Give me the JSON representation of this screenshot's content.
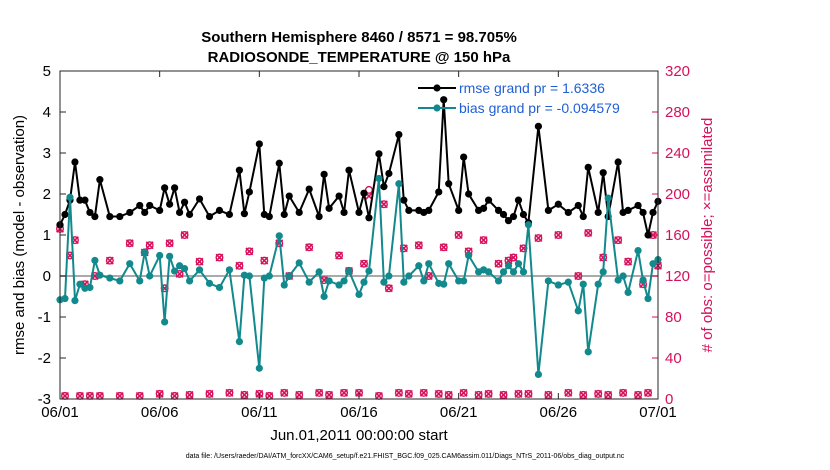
{
  "chart_data": {
    "type": "line",
    "title": "Southern Hemisphere 8460 / 8571 = 98.705%",
    "subtitle": "RADIOSONDE_TEMPERATURE @ 150 hPa",
    "xlabel": "Jun.01,2011 00:00:00 start",
    "ylabel": "rmse and bias (model - observation)",
    "ylabel_right": "# of obs: o=possible; ×=assimilated",
    "footnote": "data file: /Users/raeder/DAI/ATM_forcXX/CAM6_setup/f.e21.FHIST_BGC.f09_025.CAM6assim.011/Diags_NTrS_2011-06/obs_diag_output.nc",
    "xlim": [
      0,
      30
    ],
    "ylim": [
      -3,
      5
    ],
    "ylim_right": [
      0,
      320
    ],
    "x_ticks": [
      "06/01",
      "06/06",
      "06/11",
      "06/16",
      "06/21",
      "06/26",
      "07/01"
    ],
    "x_tick_values": [
      0,
      5,
      10,
      15,
      20,
      25,
      30
    ],
    "y_ticks": [
      "-3",
      "-2",
      "-1",
      "0",
      "1",
      "2",
      "3",
      "4",
      "5"
    ],
    "y_tick_values": [
      -3,
      -2,
      -1,
      0,
      1,
      2,
      3,
      4,
      5
    ],
    "y_ticks_right": [
      "0",
      "40",
      "80",
      "120",
      "160",
      "200",
      "240",
      "280",
      "320"
    ],
    "y_tick_values_right": [
      0,
      40,
      80,
      120,
      160,
      200,
      240,
      280,
      320
    ],
    "grid": false,
    "legend_position": "top-right",
    "colors": {
      "rmse": "#000000",
      "bias": "#12898c",
      "obs": "#d6115b",
      "zero_line": "#aaaaaa",
      "legend_text": "#1f5fd6"
    },
    "series": [
      {
        "name": "rmse grand pr = 1.6336",
        "axis": "left",
        "x": [
          0.0,
          0.25,
          0.5,
          0.75,
          1.0,
          1.25,
          1.5,
          1.75,
          2.0,
          2.5,
          3.0,
          3.5,
          4.0,
          4.25,
          4.5,
          5.0,
          5.25,
          5.5,
          5.75,
          6.0,
          6.25,
          6.5,
          7.0,
          7.5,
          8.0,
          8.5,
          9.0,
          9.25,
          9.5,
          10.0,
          10.25,
          10.5,
          11.0,
          11.25,
          11.5,
          12.0,
          12.5,
          13.0,
          13.25,
          13.5,
          14.0,
          14.25,
          14.5,
          15.0,
          15.25,
          15.5,
          16.0,
          16.25,
          16.5,
          17.0,
          17.25,
          17.5,
          18.0,
          18.25,
          18.5,
          19.0,
          19.25,
          19.5,
          20.0,
          20.25,
          20.5,
          21.0,
          21.25,
          21.5,
          22.0,
          22.25,
          22.5,
          22.75,
          23.0,
          23.25,
          23.5,
          24.0,
          24.5,
          25.0,
          25.5,
          26.0,
          26.25,
          26.5,
          27.0,
          27.25,
          27.5,
          28.0,
          28.25,
          28.5,
          29.0,
          29.25,
          29.5,
          29.75,
          30.0
        ],
        "values": [
          1.25,
          1.5,
          1.85,
          2.78,
          1.85,
          1.85,
          1.55,
          1.45,
          2.35,
          1.45,
          1.45,
          1.55,
          1.72,
          1.55,
          1.72,
          1.6,
          2.15,
          1.75,
          2.15,
          1.55,
          1.8,
          1.5,
          1.88,
          1.45,
          1.6,
          1.5,
          2.58,
          1.52,
          2.05,
          3.22,
          1.5,
          1.45,
          2.75,
          1.5,
          1.95,
          1.55,
          2.12,
          1.45,
          2.48,
          1.65,
          1.95,
          1.55,
          2.58,
          1.55,
          2.02,
          1.42,
          2.98,
          2.18,
          2.5,
          3.45,
          1.85,
          1.6,
          1.6,
          1.55,
          1.6,
          2.05,
          4.3,
          2.25,
          1.6,
          2.9,
          2.0,
          1.6,
          1.65,
          1.85,
          1.6,
          1.5,
          1.35,
          1.45,
          1.85,
          1.5,
          1.3,
          3.65,
          1.6,
          1.75,
          1.55,
          1.72,
          1.45,
          2.65,
          1.55,
          2.52,
          1.45,
          2.78,
          1.55,
          1.6,
          1.72,
          1.55,
          1.0,
          1.55,
          1.82
        ]
      },
      {
        "name": "bias grand pr = -0.094579",
        "axis": "left",
        "x": [
          0.0,
          0.25,
          0.5,
          0.75,
          1.0,
          1.25,
          1.5,
          1.75,
          2.0,
          2.5,
          3.0,
          3.5,
          4.0,
          4.25,
          4.5,
          5.0,
          5.25,
          5.5,
          5.75,
          6.0,
          6.25,
          6.5,
          7.0,
          7.5,
          8.0,
          8.5,
          9.0,
          9.25,
          9.5,
          10.0,
          10.25,
          10.5,
          11.0,
          11.25,
          11.5,
          12.0,
          12.5,
          13.0,
          13.25,
          13.5,
          14.0,
          14.25,
          14.5,
          15.0,
          15.25,
          15.5,
          16.0,
          16.25,
          16.5,
          17.0,
          17.25,
          17.5,
          18.0,
          18.25,
          18.5,
          19.0,
          19.25,
          19.5,
          20.0,
          20.25,
          20.5,
          21.0,
          21.25,
          21.5,
          22.0,
          22.25,
          22.5,
          22.75,
          23.0,
          23.25,
          23.5,
          24.0,
          24.5,
          25.0,
          25.5,
          26.0,
          26.25,
          26.5,
          27.0,
          27.25,
          27.5,
          28.0,
          28.25,
          28.5,
          29.0,
          29.25,
          29.5,
          29.75,
          30.0
        ],
        "values": [
          -0.58,
          -0.55,
          1.92,
          -0.6,
          -0.2,
          -0.3,
          -0.28,
          0.38,
          0.02,
          -0.05,
          -0.12,
          0.3,
          -0.12,
          0.58,
          0.0,
          0.5,
          -1.12,
          0.48,
          0.12,
          0.25,
          0.18,
          -0.12,
          0.15,
          -0.18,
          -0.28,
          0.15,
          -1.6,
          0.02,
          0.0,
          -2.25,
          -0.05,
          0.0,
          0.98,
          -0.22,
          0.0,
          0.32,
          -0.15,
          0.1,
          -0.5,
          -0.12,
          -0.22,
          -0.12,
          0.12,
          -0.45,
          -0.15,
          0.12,
          2.38,
          -0.15,
          0.0,
          2.25,
          -0.15,
          0.0,
          0.25,
          -0.12,
          0.3,
          -0.18,
          -0.2,
          0.3,
          -0.12,
          -0.12,
          0.5,
          0.1,
          0.15,
          0.1,
          -0.12,
          0.1,
          0.25,
          0.1,
          0.3,
          0.1,
          1.25,
          -2.4,
          -0.12,
          -0.22,
          -0.15,
          -0.85,
          -0.2,
          -1.85,
          -0.2,
          0.1,
          1.9,
          -0.1,
          0.0,
          -0.4,
          0.62,
          -0.1,
          -0.55,
          0.3,
          0.4
        ]
      },
      {
        "name": "# of obs possible",
        "axis": "right",
        "marker": "o",
        "x": [
          0.0,
          0.25,
          0.5,
          0.75,
          1.0,
          1.25,
          1.5,
          1.75,
          2.0,
          2.5,
          3.0,
          3.5,
          4.0,
          4.25,
          4.5,
          5.0,
          5.25,
          5.5,
          5.75,
          6.0,
          6.25,
          6.5,
          7.0,
          7.5,
          8.0,
          8.5,
          9.0,
          9.25,
          9.5,
          10.0,
          10.25,
          10.5,
          11.0,
          11.25,
          11.5,
          12.0,
          12.5,
          13.0,
          13.25,
          13.5,
          14.0,
          14.25,
          14.5,
          15.0,
          15.25,
          15.5,
          16.0,
          16.25,
          16.5,
          17.0,
          17.25,
          17.5,
          18.0,
          18.25,
          18.5,
          19.0,
          19.25,
          19.5,
          20.0,
          20.25,
          20.5,
          21.0,
          21.25,
          21.5,
          22.0,
          22.25,
          22.5,
          22.75,
          23.0,
          23.25,
          23.5,
          24.0,
          24.5,
          25.0,
          25.5,
          26.0,
          26.25,
          26.5,
          27.0,
          27.25,
          27.5,
          28.0,
          28.25,
          28.5,
          29.0,
          29.25,
          29.5,
          29.75,
          30.0
        ],
        "values": [
          166,
          3,
          140,
          155,
          3,
          112,
          3,
          120,
          3,
          135,
          3,
          152,
          3,
          143,
          150,
          5,
          108,
          152,
          3,
          122,
          160,
          4,
          134,
          5,
          138,
          6,
          130,
          4,
          144,
          5,
          135,
          3,
          152,
          6,
          120,
          4,
          148,
          6,
          116,
          4,
          140,
          6,
          125,
          6,
          132,
          204,
          3,
          190,
          108,
          6,
          147,
          5,
          150,
          6,
          120,
          5,
          148,
          4,
          160,
          6,
          144,
          4,
          155,
          5,
          132,
          4,
          135,
          138,
          5,
          147,
          5,
          157,
          4,
          160,
          6,
          120,
          4,
          162,
          5,
          138,
          4,
          155,
          6,
          134,
          4,
          112,
          6,
          160,
          130
        ]
      },
      {
        "name": "# of obs assimilated",
        "axis": "right",
        "marker": "x",
        "x": [
          0.0,
          0.25,
          0.5,
          0.75,
          1.0,
          1.25,
          1.5,
          1.75,
          2.0,
          2.5,
          3.0,
          3.5,
          4.0,
          4.25,
          4.5,
          5.0,
          5.25,
          5.5,
          5.75,
          6.0,
          6.25,
          6.5,
          7.0,
          7.5,
          8.0,
          8.5,
          9.0,
          9.25,
          9.5,
          10.0,
          10.25,
          10.5,
          11.0,
          11.25,
          11.5,
          12.0,
          12.5,
          13.0,
          13.25,
          13.5,
          14.0,
          14.25,
          14.5,
          15.0,
          15.25,
          15.5,
          16.0,
          16.25,
          16.5,
          17.0,
          17.25,
          17.5,
          18.0,
          18.25,
          18.5,
          19.0,
          19.25,
          19.5,
          20.0,
          20.25,
          20.5,
          21.0,
          21.25,
          21.5,
          22.0,
          22.25,
          22.5,
          22.75,
          23.0,
          23.25,
          23.5,
          24.0,
          24.5,
          25.0,
          25.5,
          26.0,
          26.25,
          26.5,
          27.0,
          27.25,
          27.5,
          28.0,
          28.25,
          28.5,
          29.0,
          29.25,
          29.5,
          29.75,
          30.0
        ],
        "values": [
          166,
          3,
          140,
          155,
          3,
          112,
          3,
          120,
          3,
          135,
          3,
          152,
          3,
          143,
          150,
          5,
          108,
          152,
          3,
          122,
          160,
          4,
          134,
          5,
          138,
          6,
          130,
          4,
          144,
          5,
          135,
          3,
          152,
          6,
          120,
          4,
          148,
          6,
          116,
          4,
          140,
          6,
          125,
          6,
          132,
          198,
          3,
          190,
          108,
          6,
          147,
          5,
          150,
          6,
          120,
          5,
          148,
          4,
          160,
          6,
          144,
          4,
          155,
          5,
          132,
          4,
          135,
          138,
          5,
          147,
          5,
          157,
          4,
          160,
          6,
          120,
          4,
          162,
          5,
          138,
          4,
          155,
          6,
          134,
          4,
          112,
          6,
          160,
          130
        ]
      }
    ]
  }
}
